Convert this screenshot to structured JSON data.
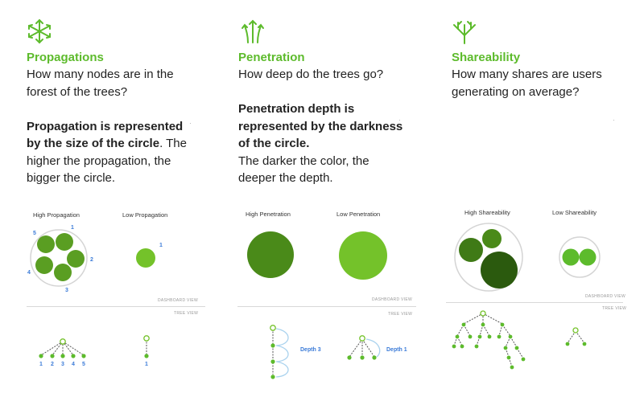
{
  "colors": {
    "accent": "#5dbb2c",
    "circle_light": "#74c22a",
    "circle_mid": "#5a9e22",
    "circle_dark": "#3f7a16",
    "circle_darker": "#2b5a0e",
    "annotation_blue": "#3b7bd8"
  },
  "sections": [
    {
      "icon": "radial-arrows-icon",
      "title": "Propagations",
      "question": "How many nodes are in the forest of the trees?",
      "emphasis": "Propagation is represented by the size of the circle",
      "detail": ". The higher the propagation, the bigger the circle.",
      "panel": {
        "high_label": "High Propagation",
        "low_label": "Low Propagation",
        "dashboard_label": "DASHBOARD VIEW",
        "tree_label": "TREE VIEW",
        "node_numbers": [
          "1",
          "2",
          "3",
          "4",
          "5"
        ],
        "low_number": "1",
        "tree_numbers": [
          "1",
          "2",
          "3",
          "4",
          "5"
        ],
        "low_tree_number": "1"
      }
    },
    {
      "icon": "upward-arrows-icon",
      "title": "Penetration",
      "question": "How deep do the trees go?",
      "emphasis": "Penetration depth is represented by the darkness of the circle.",
      "detail": "The darker the color, the deeper the depth.",
      "panel": {
        "high_label": "High Penetration",
        "low_label": "Low Penetration",
        "dashboard_label": "DASHBOARD VIEW",
        "tree_label": "TREE VIEW",
        "depth_high": "Depth 3",
        "depth_low": "Depth 1"
      }
    },
    {
      "icon": "branching-tree-icon",
      "title": "Shareability",
      "question": "How many shares are users generating on average?",
      "panel": {
        "high_label": "High Shareability",
        "low_label": "Low Shareability",
        "dashboard_label": "DASHBOARD VIEW",
        "tree_label": "TREE VIEW"
      }
    }
  ]
}
